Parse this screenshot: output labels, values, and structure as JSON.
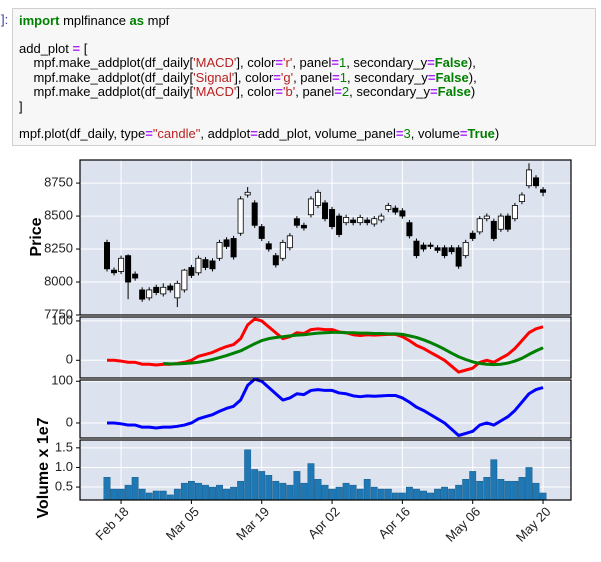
{
  "code": {
    "prompt": "]:",
    "blocks": [
      [
        [
          {
            "text": "import",
            "style": "keyword"
          },
          " mplfinance ",
          {
            "text": "as",
            "style": "keyword"
          },
          " mpf"
        ]
      ],
      [
        [
          "add_plot ",
          {
            "text": "=",
            "style": "operator"
          },
          " ["
        ],
        [
          "    mpf.make_addplot(df_daily[",
          {
            "text": "'MACD'",
            "style": "string"
          },
          "], color",
          {
            "text": "=",
            "style": "operator"
          },
          {
            "text": "'r'",
            "style": "string"
          },
          ", panel",
          {
            "text": "=",
            "style": "operator"
          },
          {
            "text": "1",
            "style": "number"
          },
          ", secondary_y",
          {
            "text": "=",
            "style": "operator"
          },
          {
            "text": "False",
            "style": "keyword"
          },
          "),"
        ],
        [
          "    mpf.make_addplot(df_daily[",
          {
            "text": "'Signal'",
            "style": "string"
          },
          "], color",
          {
            "text": "=",
            "style": "operator"
          },
          {
            "text": "'g'",
            "style": "string"
          },
          ", panel",
          {
            "text": "=",
            "style": "operator"
          },
          {
            "text": "1",
            "style": "number"
          },
          ", secondary_y",
          {
            "text": "=",
            "style": "operator"
          },
          {
            "text": "False",
            "style": "keyword"
          },
          "),"
        ],
        [
          "    mpf.make_addplot(df_daily[",
          {
            "text": "'MACD'",
            "style": "string"
          },
          "], color",
          {
            "text": "=",
            "style": "operator"
          },
          {
            "text": "'b'",
            "style": "string"
          },
          ", panel",
          {
            "text": "=",
            "style": "operator"
          },
          {
            "text": "2",
            "style": "number"
          },
          ", secondary_y",
          {
            "text": "=",
            "style": "operator"
          },
          {
            "text": "False",
            "style": "keyword"
          },
          ")"
        ],
        [
          "]"
        ]
      ],
      [
        [
          "mpf.plot(df_daily, type",
          {
            "text": "=",
            "style": "operator"
          },
          {
            "text": "\"candle\"",
            "style": "string"
          },
          ", addplot",
          {
            "text": "=",
            "style": "operator"
          },
          "add_plot, volume_panel",
          {
            "text": "=",
            "style": "operator"
          },
          {
            "text": "3",
            "style": "number"
          },
          ", volume",
          {
            "text": "=",
            "style": "operator"
          },
          {
            "text": "True",
            "style": "keyword"
          },
          ")"
        ]
      ]
    ]
  },
  "chart_data": [
    {
      "type": "candlestick",
      "ylabel": "Price",
      "up_color": "#ffffff",
      "down_color": "#000000",
      "open": [
        8300,
        8090,
        8080,
        8200,
        8060,
        7940,
        7880,
        7960,
        7910,
        7970,
        7880,
        7940,
        8110,
        8070,
        8170,
        8160,
        8180,
        8320,
        8330,
        8370,
        8660,
        8600,
        8420,
        8290,
        8200,
        8180,
        8260,
        8480,
        8430,
        8510,
        8580,
        8600,
        8550,
        8500,
        8450,
        8470,
        8450,
        8470,
        8440,
        8470,
        8550,
        8560,
        8540,
        8450,
        8310,
        8280,
        8280,
        8260,
        8260,
        8260,
        8260,
        8200,
        8370,
        8380,
        8480,
        8460,
        8400,
        8500,
        8480,
        8610,
        8730,
        8790,
        8700
      ],
      "high": [
        8320,
        8110,
        8200,
        8210,
        8080,
        7960,
        7960,
        7980,
        7990,
        7990,
        8010,
        8100,
        8130,
        8200,
        8190,
        8180,
        8320,
        8340,
        8350,
        8650,
        8720,
        8620,
        8440,
        8310,
        8220,
        8320,
        8370,
        8500,
        8450,
        8650,
        8700,
        8620,
        8570,
        8520,
        8510,
        8490,
        8510,
        8490,
        8500,
        8520,
        8600,
        8580,
        8560,
        8470,
        8330,
        8300,
        8300,
        8280,
        8280,
        8280,
        8280,
        8320,
        8390,
        8500,
        8520,
        8480,
        8520,
        8520,
        8600,
        8680,
        8900,
        8810,
        8720
      ],
      "low": [
        8080,
        8050,
        8060,
        7870,
        8010,
        7850,
        7860,
        7900,
        7890,
        7920,
        7810,
        7920,
        8030,
        8050,
        8090,
        8080,
        8160,
        8250,
        8170,
        8350,
        8640,
        8410,
        8310,
        8230,
        8110,
        8160,
        8240,
        8410,
        8390,
        8490,
        8560,
        8460,
        8400,
        8340,
        8430,
        8430,
        8430,
        8430,
        8420,
        8450,
        8530,
        8510,
        8480,
        8330,
        8180,
        8230,
        8250,
        8220,
        8180,
        8210,
        8100,
        8180,
        8310,
        8360,
        8460,
        8310,
        8380,
        8380,
        8460,
        8590,
        8710,
        8710,
        8650
      ],
      "close": [
        8100,
        8070,
        8180,
        8000,
        8030,
        7870,
        7940,
        7920,
        7960,
        7940,
        7990,
        8090,
        8050,
        8180,
        8110,
        8100,
        8300,
        8270,
        8190,
        8630,
        8680,
        8430,
        8330,
        8250,
        8130,
        8300,
        8350,
        8430,
        8410,
        8630,
        8680,
        8480,
        8420,
        8360,
        8490,
        8450,
        8490,
        8450,
        8480,
        8500,
        8580,
        8530,
        8500,
        8350,
        8200,
        8250,
        8270,
        8240,
        8200,
        8230,
        8120,
        8300,
        8330,
        8480,
        8500,
        8330,
        8500,
        8400,
        8580,
        8660,
        8850,
        8730,
        8680
      ],
      "ylim": [
        7750,
        8925
      ],
      "yticks": [
        7750,
        8000,
        8250,
        8500,
        8750
      ],
      "grid": true
    },
    {
      "type": "line",
      "series": [
        {
          "color": "#ff0000",
          "values": [
            0,
            0,
            -2,
            -5,
            -5,
            -10,
            -10,
            -12,
            -10,
            -10,
            -8,
            -5,
            0,
            10,
            15,
            20,
            28,
            35,
            40,
            55,
            90,
            105,
            100,
            85,
            70,
            55,
            60,
            70,
            68,
            78,
            80,
            78,
            78,
            72,
            70,
            65,
            63,
            65,
            64,
            65,
            66,
            66,
            60,
            50,
            38,
            30,
            20,
            10,
            0,
            -15,
            -30,
            -25,
            -20,
            -5,
            0,
            -5,
            5,
            15,
            30,
            50,
            70,
            80,
            85
          ]
        },
        {
          "color": "#008000",
          "values": [
            null,
            null,
            null,
            null,
            null,
            null,
            null,
            null,
            -8,
            -9,
            -9,
            -8,
            -7,
            -5,
            -2,
            2,
            7,
            12,
            18,
            24,
            33,
            42,
            50,
            55,
            58,
            60,
            62,
            64,
            65,
            67,
            69,
            70,
            71,
            71,
            70,
            70,
            69,
            69,
            68,
            68,
            67,
            67,
            66,
            62,
            58,
            52,
            45,
            37,
            28,
            18,
            9,
            2,
            -4,
            -8,
            -10,
            -11,
            -10,
            -7,
            -2,
            5,
            15,
            24,
            32
          ]
        }
      ],
      "ylim": [
        -45,
        110
      ],
      "yticks": [
        0,
        100
      ],
      "grid": true
    },
    {
      "type": "line",
      "series": [
        {
          "color": "#0000ff",
          "values": [
            0,
            0,
            -2,
            -5,
            -5,
            -10,
            -10,
            -12,
            -10,
            -10,
            -8,
            -5,
            0,
            10,
            15,
            20,
            28,
            35,
            40,
            55,
            90,
            105,
            100,
            85,
            70,
            55,
            60,
            70,
            68,
            78,
            80,
            78,
            78,
            72,
            70,
            65,
            63,
            65,
            64,
            65,
            66,
            66,
            60,
            50,
            38,
            30,
            20,
            10,
            0,
            -15,
            -30,
            -25,
            -20,
            -5,
            0,
            -5,
            5,
            15,
            30,
            50,
            70,
            80,
            85
          ]
        }
      ],
      "ylim": [
        -36,
        103
      ],
      "yticks": [
        0,
        100
      ],
      "grid": true
    },
    {
      "type": "bar",
      "ylabel": "Volume x 1e7",
      "color": "#1f77b4",
      "categories": [
        null,
        null,
        "Feb 18",
        null,
        null,
        null,
        null,
        null,
        null,
        null,
        null,
        null,
        "Mar 05",
        null,
        null,
        null,
        null,
        null,
        null,
        null,
        null,
        null,
        "Mar 19",
        null,
        null,
        null,
        null,
        null,
        null,
        null,
        null,
        null,
        "Apr 02",
        null,
        null,
        null,
        null,
        null,
        null,
        null,
        null,
        null,
        "Apr 16",
        null,
        null,
        null,
        null,
        null,
        null,
        null,
        null,
        null,
        "May 06",
        null,
        null,
        null,
        null,
        null,
        null,
        null,
        null,
        null,
        "May 20"
      ],
      "values": [
        0.75,
        0.45,
        0.45,
        0.55,
        0.75,
        0.45,
        0.35,
        0.4,
        0.4,
        0.3,
        0.45,
        0.6,
        0.65,
        0.6,
        0.55,
        0.5,
        0.55,
        0.45,
        0.5,
        0.65,
        1.45,
        0.95,
        0.9,
        0.8,
        0.65,
        0.6,
        0.55,
        0.9,
        0.6,
        1.1,
        0.7,
        0.55,
        0.45,
        0.5,
        0.6,
        0.55,
        0.45,
        0.7,
        0.5,
        0.45,
        0.45,
        0.35,
        0.35,
        0.5,
        0.45,
        0.4,
        0.35,
        0.45,
        0.5,
        0.45,
        0.55,
        0.7,
        0.9,
        0.65,
        0.75,
        1.2,
        0.7,
        0.65,
        0.65,
        0.75,
        1.0,
        0.6,
        0.35
      ],
      "ylim": [
        0.17,
        1.7
      ],
      "yticks": [
        0.5,
        {
          "value": 1.0,
          "label": "1.0"
        },
        1.5
      ],
      "grid": true
    }
  ]
}
